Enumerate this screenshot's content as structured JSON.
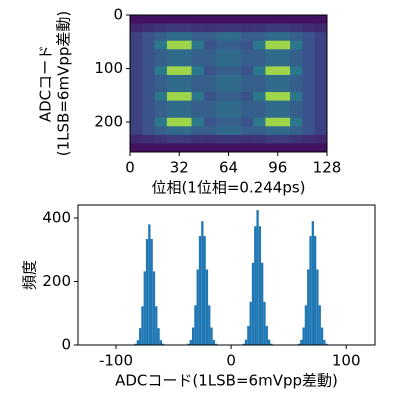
{
  "chart_data": [
    {
      "type": "heatmap",
      "colormap": "viridis",
      "xlabel": "位相(1位相=0.244ps)",
      "ylabel": [
        "ADCコード",
        "(1LSB=6mVpp差動)"
      ],
      "xlim": [
        0,
        128
      ],
      "xticks": [
        0,
        32,
        64,
        96,
        128
      ],
      "ylim": [
        256,
        0
      ],
      "yticks": [
        0,
        100,
        200
      ],
      "z": [
        [
          0.05,
          0.05,
          0.05,
          0.05,
          0.05,
          0.05,
          0.05,
          0.05,
          0.05,
          0.05,
          0.05,
          0.05,
          0.05,
          0.05,
          0.05,
          0.05
        ],
        [
          0.12,
          0.14,
          0.16,
          0.18,
          0.18,
          0.16,
          0.15,
          0.17,
          0.17,
          0.15,
          0.16,
          0.18,
          0.18,
          0.16,
          0.14,
          0.12
        ],
        [
          0.2,
          0.25,
          0.3,
          0.35,
          0.35,
          0.3,
          0.3,
          0.35,
          0.35,
          0.3,
          0.3,
          0.35,
          0.35,
          0.3,
          0.25,
          0.2
        ],
        [
          0.2,
          0.25,
          0.4,
          0.85,
          0.85,
          0.4,
          0.25,
          0.3,
          0.3,
          0.25,
          0.4,
          0.85,
          0.85,
          0.4,
          0.25,
          0.2
        ],
        [
          0.2,
          0.25,
          0.3,
          0.35,
          0.35,
          0.3,
          0.3,
          0.35,
          0.35,
          0.3,
          0.3,
          0.35,
          0.35,
          0.3,
          0.25,
          0.2
        ],
        [
          0.2,
          0.25,
          0.3,
          0.35,
          0.35,
          0.3,
          0.3,
          0.35,
          0.35,
          0.3,
          0.3,
          0.35,
          0.35,
          0.3,
          0.25,
          0.2
        ],
        [
          0.2,
          0.25,
          0.4,
          0.85,
          0.85,
          0.4,
          0.25,
          0.3,
          0.3,
          0.25,
          0.4,
          0.85,
          0.85,
          0.4,
          0.25,
          0.2
        ],
        [
          0.2,
          0.25,
          0.3,
          0.35,
          0.35,
          0.3,
          0.3,
          0.35,
          0.35,
          0.3,
          0.3,
          0.35,
          0.35,
          0.3,
          0.25,
          0.2
        ],
        [
          0.2,
          0.25,
          0.3,
          0.35,
          0.35,
          0.3,
          0.3,
          0.35,
          0.35,
          0.3,
          0.3,
          0.35,
          0.35,
          0.3,
          0.25,
          0.2
        ],
        [
          0.2,
          0.25,
          0.4,
          0.85,
          0.85,
          0.4,
          0.25,
          0.3,
          0.3,
          0.25,
          0.4,
          0.85,
          0.85,
          0.4,
          0.25,
          0.2
        ],
        [
          0.2,
          0.25,
          0.3,
          0.35,
          0.35,
          0.3,
          0.3,
          0.35,
          0.35,
          0.3,
          0.3,
          0.35,
          0.35,
          0.3,
          0.25,
          0.2
        ],
        [
          0.2,
          0.25,
          0.3,
          0.35,
          0.35,
          0.3,
          0.3,
          0.35,
          0.35,
          0.3,
          0.3,
          0.35,
          0.35,
          0.3,
          0.25,
          0.2
        ],
        [
          0.2,
          0.25,
          0.4,
          0.85,
          0.85,
          0.4,
          0.25,
          0.3,
          0.3,
          0.25,
          0.4,
          0.85,
          0.85,
          0.4,
          0.25,
          0.2
        ],
        [
          0.2,
          0.25,
          0.3,
          0.35,
          0.35,
          0.3,
          0.3,
          0.35,
          0.35,
          0.3,
          0.3,
          0.35,
          0.35,
          0.3,
          0.25,
          0.2
        ],
        [
          0.12,
          0.14,
          0.16,
          0.18,
          0.18,
          0.16,
          0.15,
          0.17,
          0.17,
          0.15,
          0.16,
          0.18,
          0.18,
          0.16,
          0.14,
          0.12
        ],
        [
          0.05,
          0.05,
          0.05,
          0.05,
          0.05,
          0.05,
          0.05,
          0.05,
          0.05,
          0.05,
          0.05,
          0.05,
          0.05,
          0.05,
          0.05,
          0.05
        ]
      ]
    },
    {
      "type": "histogram",
      "color": "#1f77b4",
      "xlabel": "ADCコード(1LSB=6mVpp差動)",
      "ylabel": "頻度",
      "xlim": [
        -133,
        125
      ],
      "xticks": [
        -100,
        0,
        100
      ],
      "ylim": [
        0,
        441
      ],
      "yticks": [
        0,
        200,
        400
      ],
      "bins": [
        -86,
        -84,
        -82,
        -80,
        -78,
        -76,
        -74,
        -72,
        -70,
        -68,
        -66,
        -64,
        -62,
        -60,
        -58,
        -56,
        -54,
        -52,
        -50,
        -48,
        -46,
        -44,
        -42,
        -40,
        -38,
        -36,
        -34,
        -32,
        -30,
        -28,
        -26,
        -24,
        -22,
        -20,
        -18,
        -16,
        -14,
        -12,
        -10,
        -8,
        -6,
        -4,
        -2,
        0,
        2,
        4,
        6,
        8,
        10,
        12,
        14,
        16,
        18,
        20,
        22,
        24,
        26,
        28,
        30,
        32,
        34,
        36,
        38,
        40,
        42,
        44,
        46,
        48,
        50,
        52,
        54,
        56,
        58,
        60,
        62,
        64,
        66,
        68,
        70,
        72,
        74,
        76,
        78,
        80,
        82,
        84,
        86
      ],
      "values": [
        1,
        4,
        15,
        53,
        122,
        232,
        334,
        380,
        334,
        232,
        122,
        53,
        15,
        4,
        1,
        0,
        0,
        0,
        0,
        0,
        0,
        0,
        0,
        0,
        4,
        16,
        55,
        125,
        238,
        343,
        390,
        343,
        238,
        125,
        55,
        16,
        4,
        0,
        0,
        0,
        0,
        0,
        0,
        0,
        0,
        0,
        0,
        0,
        4,
        17,
        60,
        136,
        259,
        374,
        425,
        374,
        259,
        136,
        60,
        17,
        4,
        0,
        0,
        0,
        0,
        0,
        0,
        0,
        0,
        0,
        0,
        0,
        4,
        16,
        55,
        125,
        238,
        343,
        390,
        343,
        238,
        125,
        55,
        16,
        4,
        1
      ]
    }
  ]
}
